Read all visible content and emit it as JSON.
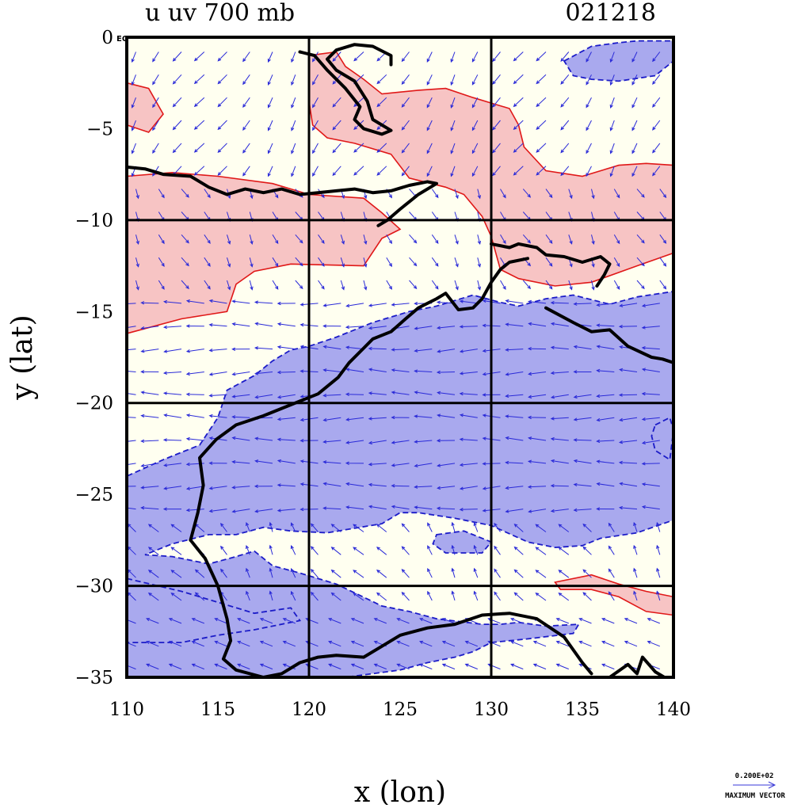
{
  "header": {
    "title_left": "u uv 700 mb",
    "title_right": "021218"
  },
  "chart_data": {
    "type": "contour-vector map",
    "xlabel": "x (lon)",
    "ylabel": "y (lat)",
    "xlim": [
      110,
      140
    ],
    "ylim": [
      -35,
      0
    ],
    "xticks": [
      110,
      115,
      120,
      125,
      130,
      135,
      140
    ],
    "yticks": [
      0,
      -5,
      -10,
      -15,
      -20,
      -25,
      -30,
      -35
    ],
    "xtick_labels": [
      "110",
      "115",
      "120",
      "125",
      "130",
      "135",
      "140"
    ],
    "ytick_labels": [
      "0",
      "−5",
      "−10",
      "−15",
      "−20",
      "−25",
      "−30",
      "−35"
    ],
    "eq_label": "EQ",
    "grid_lon": [
      120,
      130
    ],
    "grid_lat": [
      -10,
      -20,
      -30
    ],
    "shading": {
      "positive_color": "#f7c4c4",
      "negative_color": "#a9a9ee",
      "positive_line": "#e01818",
      "negative_line": "#1c1cc8",
      "positive_regions": [
        [
          [
            110,
            -2.5
          ],
          [
            111.2,
            -2.8
          ],
          [
            112,
            -4.2
          ],
          [
            111.2,
            -5.2
          ],
          [
            110,
            -4.8
          ]
        ],
        [
          [
            110,
            -7.6
          ],
          [
            112.5,
            -7.4
          ],
          [
            115,
            -7.6
          ],
          [
            118,
            -8
          ],
          [
            120,
            -8.6
          ],
          [
            123,
            -8.8
          ],
          [
            124,
            -9.6
          ],
          [
            125,
            -10.5
          ],
          [
            124,
            -11
          ],
          [
            123,
            -12.5
          ],
          [
            119,
            -12.4
          ],
          [
            117,
            -12.8
          ],
          [
            116,
            -13.5
          ],
          [
            115.5,
            -15
          ],
          [
            113,
            -15.4
          ],
          [
            110,
            -16.2
          ]
        ],
        [
          [
            120,
            -1
          ],
          [
            121.5,
            -0.8
          ],
          [
            122,
            -1.6
          ],
          [
            123,
            -2.3
          ],
          [
            124,
            -3.1
          ],
          [
            126,
            -2.9
          ],
          [
            127.5,
            -2.8
          ],
          [
            129,
            -3.3
          ],
          [
            130,
            -3.6
          ],
          [
            131,
            -3.9
          ],
          [
            131.5,
            -4.8
          ],
          [
            131.8,
            -6
          ],
          [
            133,
            -7.3
          ],
          [
            135,
            -7.6
          ],
          [
            137,
            -7
          ],
          [
            138.5,
            -6.9
          ],
          [
            140,
            -7
          ],
          [
            140,
            -11.8
          ],
          [
            138,
            -12.5
          ],
          [
            135.5,
            -13.4
          ],
          [
            133.5,
            -13.6
          ],
          [
            131.5,
            -13.2
          ],
          [
            130.5,
            -12.7
          ],
          [
            130,
            -10.9
          ],
          [
            129.5,
            -9.8
          ],
          [
            128.5,
            -8.6
          ],
          [
            127.5,
            -8.2
          ],
          [
            125.5,
            -7.7
          ],
          [
            124.5,
            -6.4
          ],
          [
            122.5,
            -5.8
          ],
          [
            121,
            -5.5
          ],
          [
            120.2,
            -4.8
          ],
          [
            120,
            -3.5
          ]
        ],
        [
          [
            133.5,
            -29.8
          ],
          [
            135.5,
            -29.4
          ],
          [
            137,
            -29.9
          ],
          [
            138.5,
            -30.3
          ],
          [
            140,
            -30.6
          ],
          [
            140,
            -31.6
          ],
          [
            138.5,
            -31.4
          ],
          [
            137,
            -30.6
          ],
          [
            135.5,
            -30.2
          ],
          [
            133.8,
            -30.2
          ]
        ]
      ],
      "negative_regions": [
        [
          [
            134,
            -1.3
          ],
          [
            135.5,
            -0.5
          ],
          [
            137,
            -0.3
          ],
          [
            138,
            -0.2
          ],
          [
            140,
            -0.2
          ],
          [
            140,
            -1.3
          ],
          [
            139,
            -2.1
          ],
          [
            137,
            -2.4
          ],
          [
            135.5,
            -2.3
          ],
          [
            134.5,
            -2.1
          ]
        ],
        [
          [
            110,
            -33.5
          ],
          [
            110,
            -24
          ],
          [
            112,
            -23.1
          ],
          [
            114,
            -22.3
          ],
          [
            115,
            -20.8
          ],
          [
            115.5,
            -19.3
          ],
          [
            117,
            -18.5
          ],
          [
            118,
            -17.7
          ],
          [
            119,
            -17.1
          ],
          [
            120,
            -16.9
          ],
          [
            121.5,
            -16.4
          ],
          [
            123.5,
            -15.6
          ],
          [
            125.5,
            -15
          ],
          [
            127,
            -14.7
          ],
          [
            128,
            -14.4
          ],
          [
            129,
            -14.1
          ],
          [
            130.5,
            -14.5
          ],
          [
            131.5,
            -14.7
          ],
          [
            133,
            -14.3
          ],
          [
            134.5,
            -14.1
          ],
          [
            136.5,
            -14.6
          ],
          [
            138,
            -14.2
          ],
          [
            140,
            -13.9
          ],
          [
            140,
            -26.4
          ],
          [
            138,
            -27.1
          ],
          [
            136,
            -27.4
          ],
          [
            135,
            -27.8
          ],
          [
            133.5,
            -27.9
          ],
          [
            132,
            -27.6
          ],
          [
            130,
            -26.7
          ],
          [
            128,
            -26.3
          ],
          [
            126,
            -26
          ],
          [
            125,
            -26
          ],
          [
            124,
            -26.6
          ],
          [
            121,
            -27.1
          ],
          [
            119,
            -27
          ],
          [
            117.5,
            -26.8
          ],
          [
            116,
            -27.2
          ],
          [
            114.5,
            -27.2
          ],
          [
            112.5,
            -27.7
          ],
          [
            111,
            -28.3
          ],
          [
            112.5,
            -28.4
          ],
          [
            114.5,
            -28.8
          ],
          [
            116,
            -28.4
          ],
          [
            117,
            -28.1
          ],
          [
            118,
            -28.9
          ],
          [
            119.5,
            -29.3
          ],
          [
            121.5,
            -29.9
          ],
          [
            124,
            -31.1
          ],
          [
            125.5,
            -31.4
          ],
          [
            127,
            -31.8
          ],
          [
            129.5,
            -32.1
          ],
          [
            130.5,
            -32.1
          ],
          [
            131.5,
            -32
          ],
          [
            133,
            -32.2
          ],
          [
            134.8,
            -32.1
          ],
          [
            134.5,
            -32.6
          ],
          [
            132,
            -32.9
          ],
          [
            130,
            -33.1
          ],
          [
            129,
            -33.6
          ],
          [
            128,
            -33.9
          ],
          [
            126.5,
            -34.2
          ],
          [
            125,
            -34.6
          ],
          [
            122,
            -35
          ],
          [
            110,
            -35
          ]
        ],
        [
          [
            110,
            -29.6
          ],
          [
            113,
            -30.3
          ],
          [
            115,
            -30.9
          ],
          [
            117,
            -31.5
          ],
          [
            119,
            -31.2
          ],
          [
            119.5,
            -31.9
          ],
          [
            117,
            -32.4
          ],
          [
            115,
            -32.7
          ],
          [
            113,
            -33.1
          ],
          [
            110,
            -33.1
          ]
        ],
        [
          [
            127,
            -27.2
          ],
          [
            128.5,
            -27
          ],
          [
            130,
            -27.6
          ],
          [
            129.5,
            -28.2
          ],
          [
            127.5,
            -28.2
          ],
          [
            126.8,
            -27.7
          ]
        ],
        [
          [
            139,
            -21.2
          ],
          [
            139.8,
            -20.8
          ],
          [
            140,
            -21.5
          ],
          [
            139.8,
            -23.1
          ],
          [
            139,
            -22.6
          ],
          [
            138.8,
            -21.8
          ]
        ]
      ]
    },
    "coastline": [
      [
        [
          119.5,
          -0.8
        ],
        [
          120.3,
          -1
        ],
        [
          121,
          -1.8
        ],
        [
          122,
          -2.8
        ],
        [
          122.8,
          -3.8
        ],
        [
          122.5,
          -4.5
        ],
        [
          123,
          -5
        ],
        [
          124,
          -5.3
        ],
        [
          124.5,
          -5.1
        ],
        [
          123.5,
          -4.5
        ],
        [
          123.2,
          -3.5
        ],
        [
          122.5,
          -2.4
        ],
        [
          121.5,
          -1.8
        ],
        [
          121,
          -1.2
        ],
        [
          121.5,
          -0.7
        ],
        [
          122.5,
          -0.4
        ],
        [
          123.5,
          -0.5
        ],
        [
          124.5,
          -1
        ],
        [
          124.5,
          -1.5
        ]
      ],
      [
        [
          110,
          -7.1
        ],
        [
          111,
          -7.2
        ],
        [
          112,
          -7.5
        ],
        [
          113.5,
          -7.6
        ],
        [
          114.5,
          -8.2
        ],
        [
          115.5,
          -8.6
        ],
        [
          116.5,
          -8.3
        ],
        [
          117.5,
          -8.5
        ],
        [
          118.5,
          -8.3
        ],
        [
          119.5,
          -8.6
        ],
        [
          120.5,
          -8.5
        ],
        [
          121.5,
          -8.4
        ],
        [
          122.5,
          -8.3
        ],
        [
          123.5,
          -8.5
        ],
        [
          124.5,
          -8.4
        ],
        [
          125.5,
          -8.1
        ],
        [
          126.5,
          -7.9
        ],
        [
          127,
          -8
        ],
        [
          126,
          -8.6
        ],
        [
          125,
          -9.4
        ],
        [
          124.3,
          -10
        ],
        [
          123.8,
          -10.3
        ]
      ],
      [
        [
          130,
          -11.3
        ],
        [
          131,
          -11.5
        ],
        [
          131.5,
          -11.3
        ],
        [
          132.5,
          -11.5
        ],
        [
          133,
          -11.9
        ],
        [
          134,
          -12
        ],
        [
          135,
          -12.3
        ],
        [
          136,
          -12
        ],
        [
          136.5,
          -12.4
        ],
        [
          136.2,
          -13
        ],
        [
          135.8,
          -13.6
        ]
      ],
      [
        [
          113.5,
          -27.5
        ],
        [
          113.9,
          -26
        ],
        [
          114.2,
          -24.5
        ],
        [
          114,
          -23
        ],
        [
          114.9,
          -22
        ],
        [
          116,
          -21.2
        ],
        [
          117.5,
          -20.7
        ],
        [
          118.5,
          -20.3
        ],
        [
          119.5,
          -19.9
        ],
        [
          120.5,
          -19.5
        ],
        [
          121.6,
          -18.6
        ],
        [
          122.2,
          -17.8
        ],
        [
          123,
          -17
        ],
        [
          123.5,
          -16.5
        ],
        [
          124.5,
          -16.1
        ],
        [
          125.3,
          -15.4
        ],
        [
          126,
          -14.8
        ],
        [
          127,
          -14.3
        ],
        [
          127.5,
          -14
        ],
        [
          128.2,
          -14.9
        ],
        [
          129,
          -14.8
        ],
        [
          129.5,
          -14.3
        ],
        [
          130,
          -13.4
        ],
        [
          130.5,
          -12.7
        ],
        [
          131,
          -12.3
        ],
        [
          132,
          -12.1
        ]
      ],
      [
        [
          133,
          -14.8
        ],
        [
          134.5,
          -15.6
        ],
        [
          135.5,
          -16.1
        ],
        [
          136.5,
          -16
        ],
        [
          137.5,
          -16.9
        ],
        [
          138.8,
          -17.5
        ],
        [
          139.4,
          -17.6
        ],
        [
          140,
          -17.8
        ]
      ],
      [
        [
          113.5,
          -27.5
        ],
        [
          114.3,
          -28.5
        ],
        [
          115,
          -30
        ],
        [
          115.5,
          -31.8
        ],
        [
          115.7,
          -33
        ],
        [
          115.3,
          -34
        ],
        [
          116,
          -34.6
        ],
        [
          117.5,
          -35
        ],
        [
          118.5,
          -34.8
        ],
        [
          119.5,
          -34.2
        ],
        [
          120.5,
          -33.9
        ],
        [
          121.5,
          -33.8
        ],
        [
          123,
          -33.9
        ],
        [
          124,
          -33.3
        ],
        [
          125,
          -32.7
        ],
        [
          126.5,
          -32.3
        ],
        [
          128,
          -32.1
        ],
        [
          129.5,
          -31.6
        ],
        [
          131,
          -31.5
        ],
        [
          132.5,
          -31.8
        ],
        [
          134,
          -32.8
        ],
        [
          135,
          -34.2
        ],
        [
          135.5,
          -34.8
        ]
      ],
      [
        [
          136.5,
          -35
        ],
        [
          137.5,
          -34.3
        ],
        [
          138,
          -34.8
        ],
        [
          138.3,
          -33.9
        ],
        [
          139,
          -34.7
        ],
        [
          139.5,
          -35
        ]
      ]
    ],
    "vector_key": {
      "magnitude": "0.200E+02",
      "label": "MAXIMUM VECTOR"
    }
  }
}
